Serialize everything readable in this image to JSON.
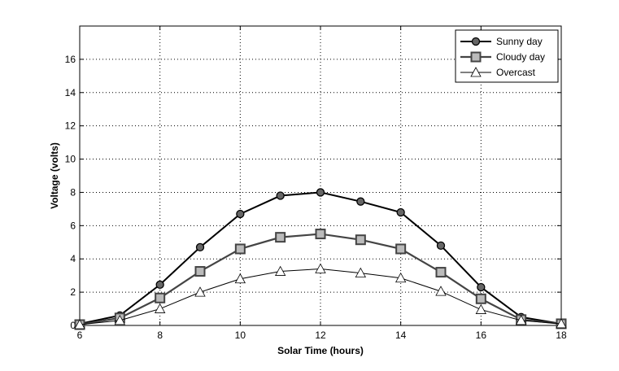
{
  "chart_data": {
    "type": "line",
    "title": "",
    "xlabel": "Solar Time (hours)",
    "ylabel": "Voltage (volts)",
    "xlim": [
      6,
      18
    ],
    "ylim": [
      0,
      18
    ],
    "xticks": [
      6,
      8,
      10,
      12,
      14,
      16,
      18
    ],
    "yticks": [
      0,
      2,
      4,
      6,
      8,
      10,
      12,
      14,
      16
    ],
    "grid": true,
    "legend_position": "top-right",
    "x": [
      6,
      7,
      8,
      9,
      10,
      11,
      12,
      13,
      14,
      15,
      16,
      17,
      18
    ],
    "series": [
      {
        "name": "Sunny day",
        "marker": "circle",
        "line_color": "#000000",
        "marker_fill": "#666666",
        "values": [
          0.1,
          0.6,
          2.45,
          4.7,
          6.7,
          7.8,
          8.0,
          7.45,
          6.8,
          4.8,
          2.3,
          0.5,
          0.1
        ]
      },
      {
        "name": "Cloudy day",
        "marker": "square",
        "line_color": "#444444",
        "marker_fill": "#bbbbbb",
        "values": [
          0.05,
          0.45,
          1.65,
          3.25,
          4.6,
          5.3,
          5.5,
          5.15,
          4.6,
          3.2,
          1.6,
          0.35,
          0.1
        ]
      },
      {
        "name": "Overcast",
        "marker": "triangle",
        "line_color": "#000000",
        "marker_fill": "#ffffff",
        "values": [
          0.05,
          0.3,
          1.0,
          2.0,
          2.8,
          3.25,
          3.4,
          3.15,
          2.85,
          2.05,
          0.95,
          0.3,
          0.1
        ]
      }
    ]
  }
}
